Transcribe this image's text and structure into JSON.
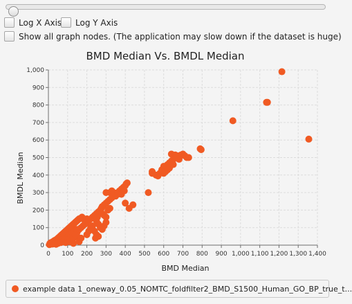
{
  "controls": {
    "log_x_label": "Log X Axis",
    "log_y_label": "Log Y Axis",
    "show_nodes_label": "Show all graph nodes.  (The application may slow down if the dataset is huge)"
  },
  "colors": {
    "series": "#f05a23",
    "grid": "#dcdcdc",
    "axis": "#6e6e6e"
  },
  "chart_data": {
    "type": "scatter",
    "title": "BMD Median Vs. BMDL Median",
    "xlabel": "BMD Median",
    "ylabel": "BMDL Median",
    "xlim": [
      0,
      1400
    ],
    "ylim": [
      0,
      1000
    ],
    "xticks": [
      "0",
      "100",
      "200",
      "300",
      "400",
      "500",
      "600",
      "700",
      "800",
      "900",
      "1,000",
      "1,100",
      "1,200",
      "1,300",
      "1,400"
    ],
    "yticks": [
      "0",
      "100",
      "200",
      "300",
      "400",
      "500",
      "600",
      "700",
      "800",
      "900",
      "1,000"
    ],
    "grid": true,
    "legend_position": "bottom",
    "series": [
      {
        "name": "example data 1_oneway_0.05_NOMTC_foldfilter2_BMD_S1500_Human_GO_BP_true_t...",
        "points": [
          [
            5,
            3
          ],
          [
            8,
            10
          ],
          [
            10,
            5
          ],
          [
            12,
            14
          ],
          [
            15,
            8
          ],
          [
            18,
            12
          ],
          [
            20,
            18
          ],
          [
            22,
            6
          ],
          [
            25,
            20
          ],
          [
            28,
            15
          ],
          [
            30,
            25
          ],
          [
            32,
            10
          ],
          [
            35,
            28
          ],
          [
            38,
            22
          ],
          [
            40,
            30
          ],
          [
            42,
            18
          ],
          [
            45,
            35
          ],
          [
            48,
            25
          ],
          [
            50,
            40
          ],
          [
            52,
            30
          ],
          [
            55,
            45
          ],
          [
            58,
            35
          ],
          [
            60,
            50
          ],
          [
            62,
            42
          ],
          [
            65,
            55
          ],
          [
            68,
            48
          ],
          [
            70,
            60
          ],
          [
            72,
            52
          ],
          [
            75,
            65
          ],
          [
            78,
            58
          ],
          [
            80,
            70
          ],
          [
            82,
            62
          ],
          [
            85,
            75
          ],
          [
            88,
            68
          ],
          [
            90,
            80
          ],
          [
            92,
            72
          ],
          [
            95,
            85
          ],
          [
            98,
            78
          ],
          [
            100,
            90
          ],
          [
            102,
            82
          ],
          [
            105,
            95
          ],
          [
            108,
            88
          ],
          [
            110,
            100
          ],
          [
            112,
            92
          ],
          [
            115,
            105
          ],
          [
            118,
            98
          ],
          [
            120,
            110
          ],
          [
            125,
            115
          ],
          [
            130,
            120
          ],
          [
            135,
            125
          ],
          [
            140,
            130
          ],
          [
            145,
            135
          ],
          [
            150,
            140
          ],
          [
            155,
            145
          ],
          [
            160,
            150
          ],
          [
            170,
            155
          ],
          [
            175,
            160
          ],
          [
            180,
            150
          ],
          [
            190,
            140
          ],
          [
            200,
            150
          ],
          [
            60,
            20
          ],
          [
            70,
            30
          ],
          [
            80,
            25
          ],
          [
            90,
            40
          ],
          [
            100,
            35
          ],
          [
            110,
            45
          ],
          [
            120,
            55
          ],
          [
            130,
            60
          ],
          [
            140,
            70
          ],
          [
            150,
            75
          ],
          [
            40,
            5
          ],
          [
            50,
            10
          ],
          [
            65,
            15
          ],
          [
            75,
            20
          ],
          [
            85,
            30
          ],
          [
            95,
            25
          ],
          [
            105,
            50
          ],
          [
            115,
            60
          ],
          [
            125,
            70
          ],
          [
            135,
            80
          ],
          [
            100,
            30
          ],
          [
            90,
            15
          ],
          [
            110,
            20
          ],
          [
            130,
            40
          ],
          [
            150,
            50
          ],
          [
            160,
            90
          ],
          [
            170,
            100
          ],
          [
            180,
            110
          ],
          [
            190,
            120
          ],
          [
            200,
            130
          ],
          [
            210,
            140
          ],
          [
            220,
            150
          ],
          [
            230,
            160
          ],
          [
            240,
            170
          ],
          [
            250,
            180
          ],
          [
            255,
            160
          ],
          [
            260,
            190
          ],
          [
            270,
            200
          ],
          [
            275,
            210
          ],
          [
            280,
            220
          ],
          [
            290,
            230
          ],
          [
            300,
            240
          ],
          [
            310,
            250
          ],
          [
            320,
            260
          ],
          [
            330,
            270
          ],
          [
            340,
            280
          ],
          [
            350,
            290
          ],
          [
            360,
            300
          ],
          [
            370,
            310
          ],
          [
            380,
            320
          ],
          [
            390,
            330
          ],
          [
            400,
            340
          ],
          [
            405,
            350
          ],
          [
            410,
            355
          ],
          [
            300,
            300
          ],
          [
            320,
            300
          ],
          [
            330,
            310
          ],
          [
            340,
            300
          ],
          [
            350,
            280
          ],
          [
            360,
            290
          ],
          [
            270,
            190
          ],
          [
            280,
            180
          ],
          [
            290,
            170
          ],
          [
            300,
            160
          ],
          [
            310,
            200
          ],
          [
            320,
            210
          ],
          [
            250,
            140
          ],
          [
            260,
            120
          ],
          [
            270,
            100
          ],
          [
            280,
            90
          ],
          [
            290,
            110
          ],
          [
            300,
            130
          ],
          [
            240,
            80
          ],
          [
            245,
            40
          ],
          [
            250,
            60
          ],
          [
            260,
            50
          ],
          [
            150,
            90
          ],
          [
            140,
            60
          ],
          [
            200,
            60
          ],
          [
            210,
            80
          ],
          [
            220,
            100
          ],
          [
            230,
            110
          ],
          [
            380,
            290
          ],
          [
            395,
            310
          ],
          [
            400,
            240
          ],
          [
            420,
            210
          ],
          [
            440,
            230
          ],
          [
            130,
            10
          ],
          [
            160,
            20
          ],
          [
            170,
            40
          ],
          [
            520,
            300
          ],
          [
            540,
            420
          ],
          [
            560,
            400
          ],
          [
            570,
            395
          ],
          [
            580,
            410
          ],
          [
            590,
            430
          ],
          [
            600,
            450
          ],
          [
            610,
            440
          ],
          [
            620,
            460
          ],
          [
            630,
            470
          ],
          [
            640,
            480
          ],
          [
            650,
            490
          ],
          [
            660,
            500
          ],
          [
            670,
            510
          ],
          [
            680,
            500
          ],
          [
            690,
            515
          ],
          [
            700,
            520
          ],
          [
            710,
            510
          ],
          [
            720,
            500
          ],
          [
            730,
            500
          ],
          [
            640,
            520
          ],
          [
            660,
            515
          ],
          [
            680,
            490
          ],
          [
            600,
            410
          ],
          [
            610,
            420
          ],
          [
            620,
            430
          ],
          [
            630,
            440
          ],
          [
            650,
            460
          ],
          [
            540,
            410
          ],
          [
            590,
            420
          ],
          [
            790,
            550
          ],
          [
            795,
            545
          ],
          [
            960,
            710
          ],
          [
            1135,
            815
          ],
          [
            1140,
            815
          ],
          [
            1215,
            990
          ],
          [
            1355,
            605
          ]
        ]
      }
    ]
  }
}
